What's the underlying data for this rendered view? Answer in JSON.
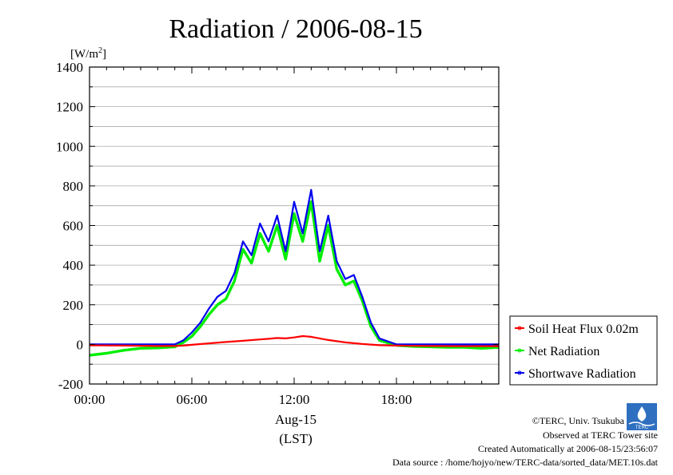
{
  "chart_data": {
    "type": "line",
    "title": "Radiation / 2006-08-15",
    "ylabel_prefix": "[W/m",
    "ylabel_sup": "2",
    "ylabel_suffix": "]",
    "xlabel_date": "Aug-15",
    "xlabel_zone": "(LST)",
    "ylim": [
      -200,
      1400
    ],
    "xlim_hours": [
      0,
      24
    ],
    "yticks": [
      -200,
      0,
      200,
      400,
      600,
      800,
      1000,
      1200,
      1400
    ],
    "xticks": [
      {
        "hour": 0,
        "label": "00:00"
      },
      {
        "hour": 6,
        "label": "06:00"
      },
      {
        "hour": 12,
        "label": "12:00"
      },
      {
        "hour": 18,
        "label": "18:00"
      }
    ],
    "grid": true,
    "legend_position": "right",
    "series": [
      {
        "name": "Soil Heat Flux 0.02m",
        "color": "#ff0000",
        "x": [
          0,
          2,
          4,
          5,
          5.5,
          6,
          7,
          8,
          9,
          10,
          10.5,
          11,
          11.5,
          12,
          12.5,
          13,
          13.5,
          14,
          15,
          16,
          17,
          18,
          20,
          22,
          24
        ],
        "y": [
          -5,
          -6,
          -8,
          -8,
          -6,
          -2,
          5,
          12,
          18,
          25,
          28,
          32,
          30,
          35,
          42,
          38,
          30,
          22,
          10,
          2,
          -4,
          -6,
          -8,
          -9,
          -9
        ]
      },
      {
        "name": "Net Radiation",
        "color": "#00ee00",
        "x": [
          0,
          1,
          2,
          3,
          4,
          5,
          5.5,
          6,
          6.5,
          7,
          7.5,
          8,
          8.5,
          9,
          9.5,
          10,
          10.5,
          11,
          11.5,
          12,
          12.5,
          13,
          13.5,
          14,
          14.5,
          15,
          15.5,
          16,
          16.5,
          17,
          18,
          19,
          20,
          21,
          22,
          23,
          24
        ],
        "y": [
          -55,
          -45,
          -30,
          -20,
          -18,
          -12,
          10,
          40,
          90,
          150,
          200,
          230,
          320,
          480,
          410,
          560,
          470,
          600,
          430,
          660,
          520,
          720,
          420,
          600,
          380,
          300,
          320,
          220,
          90,
          20,
          -5,
          -10,
          -12,
          -15,
          -15,
          -20,
          -15
        ]
      },
      {
        "name": "Shortwave Radiation",
        "color": "#0000ee",
        "x": [
          0,
          2,
          4,
          5,
          5.5,
          6,
          6.5,
          7,
          7.5,
          8,
          8.5,
          9,
          9.5,
          10,
          10.5,
          11,
          11.5,
          12,
          12.5,
          13,
          13.5,
          14,
          14.5,
          15,
          15.5,
          16,
          16.5,
          17,
          18,
          20,
          22,
          24
        ],
        "y": [
          0,
          0,
          0,
          0,
          20,
          60,
          110,
          180,
          240,
          270,
          360,
          520,
          450,
          610,
          520,
          650,
          470,
          720,
          560,
          780,
          470,
          650,
          420,
          330,
          350,
          240,
          110,
          30,
          0,
          0,
          0,
          0
        ]
      }
    ]
  },
  "credits": {
    "copyright": "©TERC, Univ. Tsukuba",
    "observed": "Observed at TERC Tower site",
    "created": "Created Automatically at 2006-08-15/23:56:07",
    "source": "Data source : /home/hojyo/new/TERC-data/sorted_data/MET.10s.dat",
    "logo_text": "TERC"
  }
}
